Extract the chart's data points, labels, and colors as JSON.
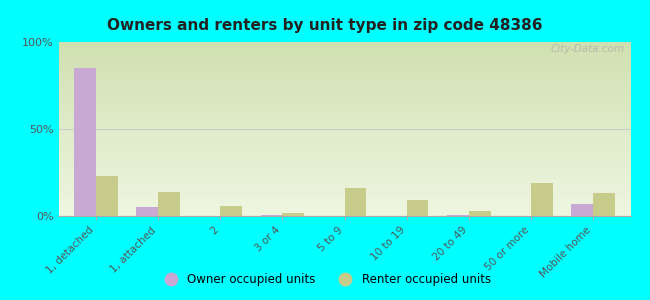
{
  "title": "Owners and renters by unit type in zip code 48386",
  "categories": [
    "1, detached",
    "1, attached",
    "2",
    "3 or 4",
    "5 to 9",
    "10 to 19",
    "20 to 49",
    "50 or more",
    "Mobile home"
  ],
  "owner_values": [
    85,
    5,
    0,
    0.5,
    0,
    0,
    0.3,
    0,
    7
  ],
  "renter_values": [
    23,
    14,
    6,
    1.5,
    16,
    9,
    3,
    19,
    13
  ],
  "owner_color": "#c9a8d4",
  "renter_color": "#c8cc8a",
  "background_color": "#00ffff",
  "ylim": [
    0,
    100
  ],
  "yticks": [
    0,
    50,
    100
  ],
  "ytick_labels": [
    "0%",
    "50%",
    "100%"
  ],
  "bar_width": 0.35,
  "legend_owner": "Owner occupied units",
  "legend_renter": "Renter occupied units",
  "watermark": "City-Data.com"
}
